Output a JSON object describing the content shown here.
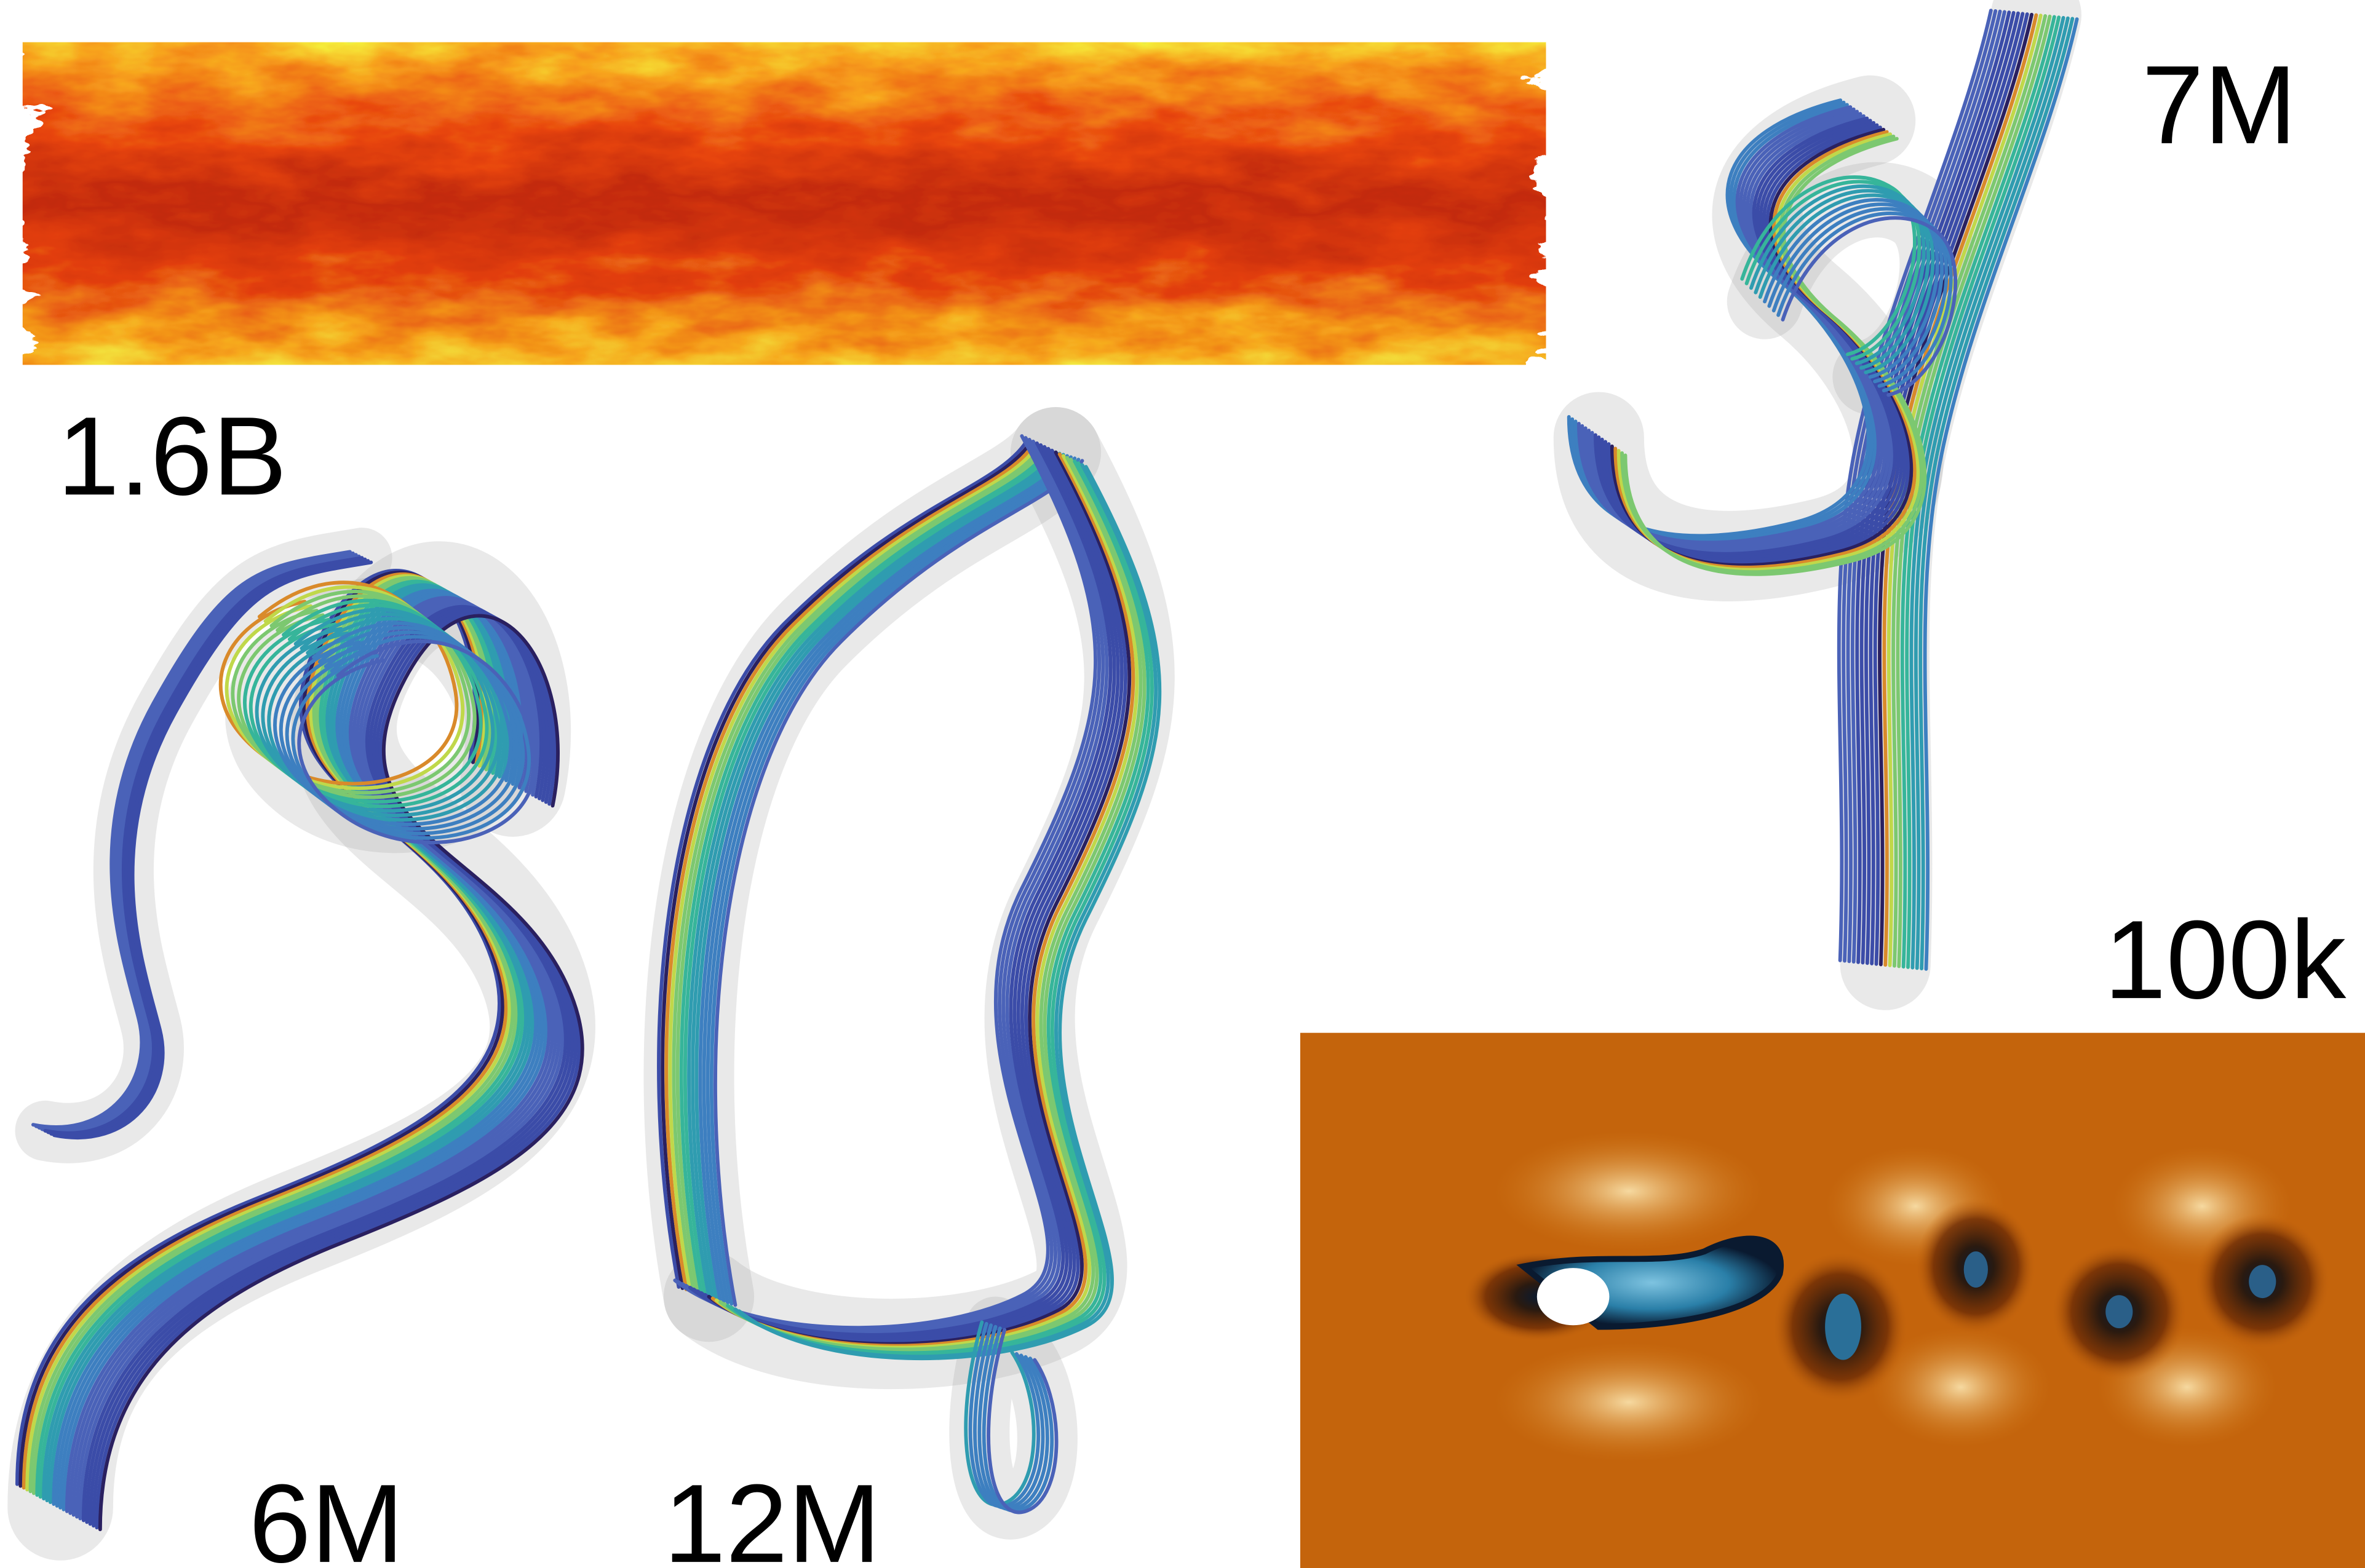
{
  "labels": {
    "channel": "1.6B",
    "aorta_top": "7M",
    "wake": "100k",
    "aorta_left": "6M",
    "aorta_mid": "12M"
  }
}
